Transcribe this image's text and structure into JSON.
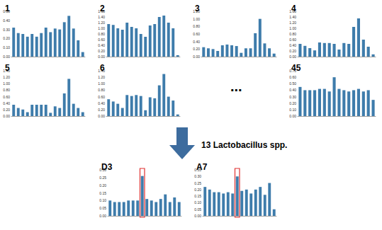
{
  "chart_data": [
    {
      "type": "bar",
      "title": "1",
      "categories": [
        null,
        null,
        null,
        null,
        null,
        null,
        null,
        null,
        null,
        null,
        null,
        null,
        null,
        null,
        null,
        null
      ],
      "values": [
        0.32,
        0.26,
        0.25,
        0.22,
        0.25,
        0.22,
        0.26,
        0.32,
        0.27,
        0.31,
        0.3,
        0.38,
        0.45,
        0.31,
        0.18,
        0.05
      ],
      "color": "#3e7cab",
      "ylim": [
        0,
        0.5
      ],
      "yticks": [
        {
          "value": 0,
          "label": "0.00"
        },
        {
          "value": 0.1,
          "label": "0.10"
        },
        {
          "value": 0.2,
          "label": "0.20"
        },
        {
          "value": 0.3,
          "label": "0.30"
        },
        {
          "value": 0.4,
          "label": "0.40"
        },
        {
          "value": 0.5,
          "label": "0.50"
        }
      ],
      "grid": false,
      "tick_labels": "y"
    },
    {
      "type": "bar",
      "title": "2",
      "categories": [
        null,
        null,
        null,
        null,
        null,
        null,
        null,
        null,
        null,
        null,
        null,
        null,
        null,
        null,
        null,
        null
      ],
      "values": [
        1.15,
        1.12,
        1.0,
        0.95,
        1.2,
        1.05,
        1.0,
        0.8,
        0.7,
        1.1,
        1.15,
        1.4,
        1.45,
        1.2,
        1.0,
        0.05
      ],
      "color": "#3e7cab",
      "ylim": [
        0,
        1.6
      ],
      "yticks": [
        {
          "value": 0,
          "label": "0.00"
        },
        {
          "value": 0.2,
          "label": "0.20"
        },
        {
          "value": 0.4,
          "label": "0.40"
        },
        {
          "value": 0.6,
          "label": "0.60"
        },
        {
          "value": 0.8,
          "label": "0.80"
        },
        {
          "value": 1.0,
          "label": "1.00"
        },
        {
          "value": 1.2,
          "label": "1.20"
        },
        {
          "value": 1.4,
          "label": "1.40"
        },
        {
          "value": 1.6,
          "label": "1.60"
        }
      ],
      "grid": false,
      "tick_labels": "y"
    },
    {
      "type": "bar",
      "title": "3",
      "categories": [
        null,
        null,
        null,
        null,
        null,
        null,
        null,
        null,
        null,
        null,
        null,
        null,
        null,
        null,
        null,
        null
      ],
      "values": [
        0.25,
        0.22,
        0.2,
        0.15,
        0.3,
        0.32,
        0.3,
        0.28,
        0.1,
        0.22,
        0.22,
        0.62,
        1.0,
        0.35,
        0.22,
        0.08
      ],
      "color": "#3e7cab",
      "ylim": [
        0,
        1.2
      ],
      "yticks": [
        {
          "value": 0,
          "label": "0.00"
        },
        {
          "value": 0.2,
          "label": "0.20"
        },
        {
          "value": 0.4,
          "label": "0.40"
        },
        {
          "value": 0.6,
          "label": "0.60"
        },
        {
          "value": 0.8,
          "label": "0.80"
        },
        {
          "value": 1.0,
          "label": "1.00"
        },
        {
          "value": 1.2,
          "label": "1.20"
        }
      ],
      "grid": false,
      "tick_labels": "y"
    },
    {
      "type": "bar",
      "title": "4",
      "categories": [
        null,
        null,
        null,
        null,
        null,
        null,
        null,
        null,
        null,
        null,
        null,
        null,
        null,
        null,
        null,
        null
      ],
      "values": [
        0.45,
        0.38,
        0.3,
        0.22,
        0.5,
        0.48,
        0.48,
        0.45,
        0.25,
        0.48,
        0.45,
        1.05,
        1.35,
        0.6,
        0.35,
        0.08
      ],
      "color": "#3e7cab",
      "ylim": [
        0,
        1.6
      ],
      "yticks": [
        {
          "value": 0,
          "label": "0.00"
        },
        {
          "value": 0.2,
          "label": "0.20"
        },
        {
          "value": 0.4,
          "label": "0.40"
        },
        {
          "value": 0.6,
          "label": "0.60"
        },
        {
          "value": 0.8,
          "label": "0.80"
        },
        {
          "value": 1.0,
          "label": "1.00"
        },
        {
          "value": 1.2,
          "label": "1.20"
        },
        {
          "value": 1.4,
          "label": "1.40"
        },
        {
          "value": 1.6,
          "label": "1.60"
        }
      ],
      "grid": false,
      "tick_labels": "y"
    },
    {
      "type": "bar",
      "title": "5",
      "categories": [
        null,
        null,
        null,
        null,
        null,
        null,
        null,
        null,
        null,
        null,
        null,
        null,
        null,
        null,
        null,
        null
      ],
      "values": [
        0.35,
        0.25,
        0.2,
        0.12,
        0.35,
        0.35,
        0.35,
        0.35,
        0.1,
        0.3,
        0.25,
        0.7,
        1.15,
        0.38,
        0.25,
        0.12
      ],
      "color": "#3e7cab",
      "ylim": [
        0,
        1.4
      ],
      "yticks": [
        {
          "value": 0,
          "label": "0.00"
        },
        {
          "value": 0.2,
          "label": "0.20"
        },
        {
          "value": 0.4,
          "label": "0.40"
        },
        {
          "value": 0.6,
          "label": "0.60"
        },
        {
          "value": 0.8,
          "label": "0.80"
        },
        {
          "value": 1.0,
          "label": "1.00"
        },
        {
          "value": 1.2,
          "label": "1.20"
        },
        {
          "value": 1.4,
          "label": "1.40"
        }
      ],
      "grid": false,
      "tick_labels": "y"
    },
    {
      "type": "bar",
      "title": "6",
      "categories": [
        null,
        null,
        null,
        null,
        null,
        null,
        null,
        null,
        null,
        null,
        null,
        null,
        null,
        null,
        null,
        null
      ],
      "values": [
        0.52,
        0.45,
        0.38,
        0.25,
        0.65,
        0.62,
        0.65,
        0.62,
        0.18,
        0.58,
        0.55,
        0.95,
        1.3,
        0.6,
        0.48,
        0.05
      ],
      "color": "#3e7cab",
      "ylim": [
        0,
        1.4
      ],
      "yticks": [
        {
          "value": 0,
          "label": "0.00"
        },
        {
          "value": 0.2,
          "label": "0.20"
        },
        {
          "value": 0.4,
          "label": "0.40"
        },
        {
          "value": 0.6,
          "label": "0.60"
        },
        {
          "value": 0.8,
          "label": "0.80"
        },
        {
          "value": 1.0,
          "label": "1.00"
        },
        {
          "value": 1.2,
          "label": "1.20"
        },
        {
          "value": 1.4,
          "label": "1.40"
        }
      ],
      "grid": false,
      "tick_labels": "y"
    },
    {
      "type": "bar",
      "title": "45",
      "categories": [
        null,
        null,
        null,
        null,
        null,
        null,
        null,
        null,
        null,
        null,
        null,
        null,
        null,
        null,
        null,
        null
      ],
      "values": [
        0.45,
        0.4,
        0.4,
        0.4,
        0.42,
        0.42,
        0.38,
        0.6,
        0.42,
        0.4,
        0.38,
        0.4,
        0.42,
        0.38,
        0.4,
        0.25
      ],
      "color": "#3e7cab",
      "ylim": [
        0,
        0.7
      ],
      "yticks": [
        {
          "value": 0,
          "label": "0.00"
        },
        {
          "value": 0.1,
          "label": "0.10"
        },
        {
          "value": 0.2,
          "label": "0.20"
        },
        {
          "value": 0.3,
          "label": "0.30"
        },
        {
          "value": 0.4,
          "label": "0.40"
        },
        {
          "value": 0.5,
          "label": "0.50"
        },
        {
          "value": 0.6,
          "label": "0.60"
        },
        {
          "value": 0.7,
          "label": "0.70"
        }
      ],
      "grid": false,
      "tick_labels": "y"
    },
    {
      "type": "bar",
      "title": "D3",
      "categories": [
        null,
        null,
        null,
        null,
        null,
        null,
        null,
        null,
        null,
        null,
        null,
        null,
        null,
        null,
        null,
        null
      ],
      "values": [
        0.1,
        0.09,
        0.09,
        0.09,
        0.1,
        0.1,
        0.1,
        0.26,
        0.11,
        0.1,
        0.09,
        0.11,
        0.14,
        0.09,
        0.12,
        0.09
      ],
      "color": "#3e7cab",
      "ylim": [
        0,
        0.3
      ],
      "yticks": [
        {
          "value": 0,
          "label": "0.00"
        },
        {
          "value": 0.05,
          "label": "0.05"
        },
        {
          "value": 0.1,
          "label": "0.10"
        },
        {
          "value": 0.15,
          "label": "0.15"
        },
        {
          "value": 0.2,
          "label": "0.20"
        },
        {
          "value": 0.25,
          "label": "0.25"
        },
        {
          "value": 0.3,
          "label": "0.30"
        }
      ],
      "grid": false,
      "tick_labels": "y",
      "highlight_index": 7
    },
    {
      "type": "bar",
      "title": "A7",
      "categories": [
        null,
        null,
        null,
        null,
        null,
        null,
        null,
        null,
        null,
        null,
        null,
        null,
        null,
        null,
        null,
        null
      ],
      "values": [
        0.22,
        0.2,
        0.18,
        0.18,
        0.17,
        0.18,
        0.17,
        0.3,
        0.19,
        0.2,
        0.17,
        0.2,
        0.22,
        0.16,
        0.25,
        0.05
      ],
      "color": "#3e7cab",
      "ylim": [
        0,
        0.35
      ],
      "yticks": [
        {
          "value": 0,
          "label": "0.00"
        },
        {
          "value": 0.05,
          "label": "0.05"
        },
        {
          "value": 0.1,
          "label": "0.10"
        },
        {
          "value": 0.15,
          "label": "0.15"
        },
        {
          "value": 0.2,
          "label": "0.20"
        },
        {
          "value": 0.25,
          "label": "0.25"
        },
        {
          "value": 0.3,
          "label": "0.30"
        },
        {
          "value": 0.35,
          "label": "0.35"
        }
      ],
      "grid": false,
      "tick_labels": "y",
      "highlight_index": 7
    }
  ],
  "annotations": {
    "ellipsis": "...",
    "arrow_label": "13 Lactobacillus spp."
  }
}
